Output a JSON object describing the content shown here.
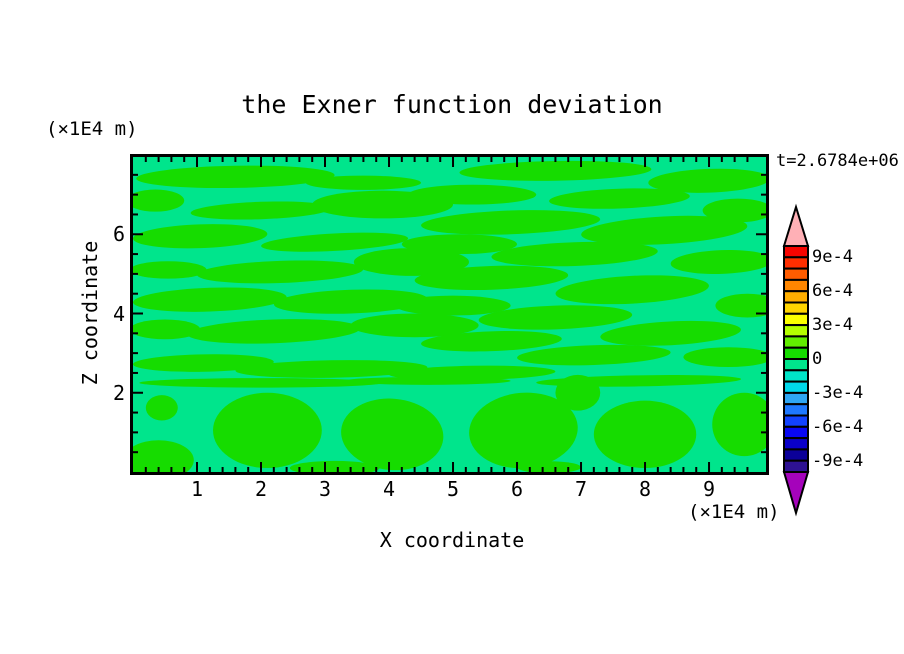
{
  "title": "the Exner function deviation",
  "timestamp": "t=2.6784e+06",
  "x_axis": {
    "title": "X coordinate",
    "units": "(×1E4 m)",
    "range": [
      0,
      9.89
    ],
    "major_ticks": [
      1,
      2,
      3,
      4,
      5,
      6,
      7,
      8,
      9
    ],
    "tick_labels": [
      "1",
      "2",
      "3",
      "4",
      "5",
      "6",
      "7",
      "8",
      "9"
    ],
    "minor_step": 0.2
  },
  "z_axis": {
    "title": "Z coordinate",
    "units": "(×1E4 m)",
    "range": [
      0,
      7.95
    ],
    "major_ticks": [
      2,
      4,
      6
    ],
    "tick_labels": [
      "2",
      "4",
      "6"
    ],
    "minor_step": 0.5
  },
  "colorbar": {
    "tick_labels": [
      "9e-4",
      "6e-4",
      "3e-4",
      "0",
      "-3e-4",
      "-6e-4",
      "-9e-4"
    ],
    "label_boundary_index": [
      1,
      4,
      7,
      10,
      13,
      16,
      19
    ],
    "box_colors": [
      "#f60400",
      "#ff2e00",
      "#ff5c00",
      "#ff8600",
      "#ffae00",
      "#ffd400",
      "#fbff00",
      "#b4ff00",
      "#62ee00",
      "#16dc00",
      "#00e58c",
      "#00e4c8",
      "#00d7ea",
      "#2fa6f4",
      "#1e78ff",
      "#1242ff",
      "#0907f2",
      "#0a00c8",
      "#0b0098",
      "#2e1292"
    ],
    "over_arrow_color": "#ffb0b6",
    "under_arrow_color": "#a503bb",
    "outline_color": "#000000"
  },
  "chart_data": {
    "type": "filled_contour",
    "title": "the Exner function deviation",
    "xlabel": "X coordinate (×1E4 m)",
    "ylabel": "Z coordinate (×1E4 m)",
    "time_annotation": "t=2.6784e+06",
    "x_range": [
      0,
      9.89
    ],
    "z_range": [
      0,
      7.95
    ],
    "contour_interval": 0.0001,
    "level_boundaries": [
      0.001,
      0.0009,
      0.0008,
      0.0007,
      0.0006,
      0.0005,
      0.0004,
      0.0003,
      0.0002,
      0.0001,
      0,
      -0.0001,
      -0.0002,
      -0.0003,
      -0.0004,
      -0.0005,
      -0.0006,
      -0.0007,
      -0.0008,
      -0.0009,
      -0.001
    ],
    "field_summary": "Deviation is near zero everywhere: background band -1e-4..0 (spring green) with elongated horizontal streaks and large low-level blobs in band 0..1e-4 (green)",
    "background_band": {
      "value_range": [
        -0.0001,
        0
      ],
      "color": "#00e58c"
    },
    "blob_band": {
      "value_range": [
        0,
        0.0001
      ],
      "color": "#16dc00"
    },
    "green_regions": [
      [
        1.6,
        7.45,
        1.55,
        0.28,
        -1
      ],
      [
        3.6,
        7.3,
        0.9,
        0.18,
        0
      ],
      [
        0.35,
        6.85,
        0.45,
        0.28,
        0
      ],
      [
        2.0,
        6.6,
        1.1,
        0.22,
        -2
      ],
      [
        3.9,
        6.75,
        1.1,
        0.35,
        0
      ],
      [
        1.05,
        5.95,
        1.05,
        0.3,
        -2
      ],
      [
        3.15,
        5.8,
        1.15,
        0.22,
        -3
      ],
      [
        0.55,
        5.1,
        0.6,
        0.22,
        0
      ],
      [
        2.3,
        5.05,
        1.3,
        0.28,
        -2
      ],
      [
        4.35,
        5.3,
        0.9,
        0.35,
        0
      ],
      [
        1.2,
        4.35,
        1.2,
        0.3,
        -2
      ],
      [
        3.4,
        4.3,
        1.2,
        0.3,
        -2
      ],
      [
        0.5,
        3.6,
        0.55,
        0.25,
        0
      ],
      [
        2.2,
        3.55,
        1.35,
        0.3,
        -2
      ],
      [
        4.4,
        3.7,
        1.0,
        0.3,
        0
      ],
      [
        6.6,
        7.6,
        1.5,
        0.25,
        -1
      ],
      [
        9.0,
        7.35,
        0.95,
        0.3,
        -2
      ],
      [
        5.3,
        7.0,
        1.0,
        0.25,
        0
      ],
      [
        7.6,
        6.9,
        1.1,
        0.25,
        -2
      ],
      [
        9.45,
        6.6,
        0.55,
        0.3,
        0
      ],
      [
        5.9,
        6.3,
        1.4,
        0.3,
        -2
      ],
      [
        8.3,
        6.1,
        1.3,
        0.35,
        -3
      ],
      [
        5.1,
        5.75,
        0.9,
        0.25,
        0
      ],
      [
        6.9,
        5.5,
        1.3,
        0.3,
        -2
      ],
      [
        9.2,
        5.3,
        0.8,
        0.3,
        -2
      ],
      [
        5.6,
        4.9,
        1.2,
        0.3,
        -2
      ],
      [
        7.8,
        4.6,
        1.2,
        0.35,
        -3
      ],
      [
        9.6,
        4.2,
        0.5,
        0.3,
        0
      ],
      [
        5.0,
        4.2,
        0.9,
        0.25,
        0
      ],
      [
        6.6,
        3.9,
        1.2,
        0.3,
        -2
      ],
      [
        8.4,
        3.5,
        1.1,
        0.3,
        -3
      ],
      [
        5.6,
        3.3,
        1.1,
        0.25,
        -2
      ],
      [
        7.2,
        2.95,
        1.2,
        0.25,
        -2
      ],
      [
        9.3,
        2.9,
        0.7,
        0.25,
        0
      ],
      [
        1.1,
        2.75,
        1.1,
        0.22,
        -1
      ],
      [
        3.1,
        2.6,
        1.5,
        0.22,
        -1
      ],
      [
        5.3,
        2.5,
        1.3,
        0.18,
        -1
      ],
      [
        2.0,
        2.25,
        1.9,
        0.12,
        0
      ],
      [
        4.6,
        2.3,
        1.3,
        0.1,
        0
      ],
      [
        7.9,
        2.3,
        1.6,
        0.14,
        -1
      ],
      [
        0.45,
        1.62,
        0.25,
        0.32,
        0
      ],
      [
        0.4,
        0.3,
        0.55,
        0.5,
        0
      ],
      [
        2.1,
        1.05,
        0.85,
        0.95,
        0
      ],
      [
        4.05,
        0.95,
        0.8,
        0.9,
        5
      ],
      [
        6.1,
        1.05,
        0.85,
        0.95,
        -5
      ],
      [
        8.0,
        0.95,
        0.8,
        0.85,
        0
      ],
      [
        9.55,
        1.2,
        0.5,
        0.8,
        0
      ],
      [
        6.95,
        2.0,
        0.35,
        0.45,
        0
      ],
      [
        3.15,
        0.1,
        0.7,
        0.18,
        0
      ],
      [
        6.5,
        0.12,
        0.5,
        0.15,
        0
      ]
    ]
  }
}
